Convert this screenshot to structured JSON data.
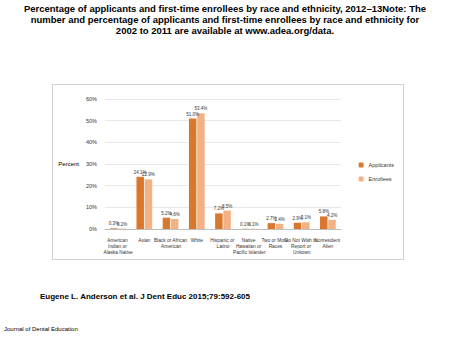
{
  "chart_data": {
    "type": "bar",
    "title": "Percentage of applicants and first-time enrollees by race and ethnicity, 2012–13Note: The number and percentage of applicants and first-time enrollees by race and ethnicity for 2002 to 2011 are available at www.adea.org/data.",
    "y_label": "Percent",
    "categories": [
      "American Indian or Alaska Native",
      "Asian",
      "Black or African American",
      "White",
      "Hispanic or Latino",
      "Native Hawaiian or Pacific Islander",
      "Two or More Races",
      "Do Not Wish to Report or Unkown",
      "Nonresident Alien"
    ],
    "series": [
      {
        "name": "Applicants",
        "color": "#d9782d",
        "values": [
          0.3,
          24.1,
          5.2,
          51.0,
          7.2,
          0.1,
          2.7,
          2.9,
          5.8
        ],
        "value_labels": [
          "0.3%",
          "24.1%",
          "5.2%",
          "51.0%",
          "7.2%",
          "0.1%",
          "2.7%",
          "2.9%",
          "5.8%"
        ]
      },
      {
        "name": "Enrollees",
        "color": "#f4b183",
        "values": [
          0.2,
          22.9,
          4.6,
          53.4,
          8.5,
          0.1,
          2.4,
          3.1,
          4.2
        ],
        "value_labels": [
          "0.2%",
          "22.9%",
          "4.6%",
          "53.4%",
          "8.5%",
          "0.1%",
          "2.4%",
          "3.1%",
          "4.2%"
        ]
      }
    ],
    "ylim": [
      0,
      60
    ],
    "yticks": [
      {
        "value": 0,
        "label": "0%"
      },
      {
        "value": 10,
        "label": "10%"
      },
      {
        "value": 20,
        "label": "20%"
      },
      {
        "value": 30,
        "label": "30%"
      },
      {
        "value": 40,
        "label": "40%"
      },
      {
        "value": 50,
        "label": "50%"
      },
      {
        "value": 60,
        "label": "60%"
      }
    ],
    "grid": true,
    "legend": "right",
    "data_labels": true
  },
  "citation": "Eugene L. Anderson et al. J Dent Educ 2015;79:592-605",
  "journal": "Journal of Dental Education"
}
